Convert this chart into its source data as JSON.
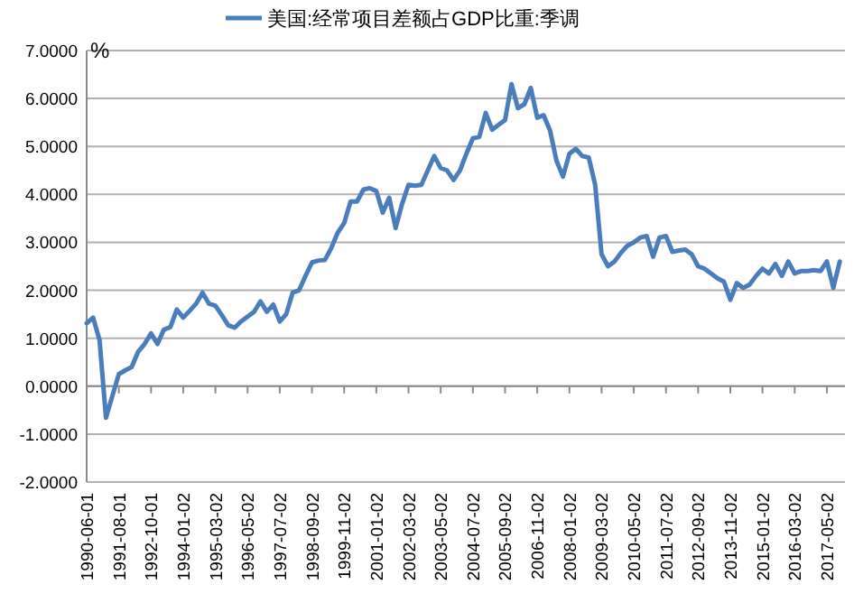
{
  "chart_data": {
    "type": "line",
    "ylabel": "%",
    "legend": "top",
    "grid": "y",
    "line_style": "solid",
    "marker": "none",
    "categories": [
      "1990-06-01",
      null,
      null,
      null,
      null,
      "1991-08-01",
      null,
      null,
      null,
      null,
      "1992-10-01",
      null,
      null,
      null,
      null,
      "1994-01-02",
      null,
      null,
      null,
      null,
      "1995-03-02",
      null,
      null,
      null,
      null,
      "1996-05-02",
      null,
      null,
      null,
      null,
      "1997-07-02",
      null,
      null,
      null,
      null,
      "1998-09-02",
      null,
      null,
      null,
      null,
      "1999-11-02",
      null,
      null,
      null,
      null,
      "2001-01-02",
      null,
      null,
      null,
      null,
      "2002-03-02",
      null,
      null,
      null,
      null,
      "2003-05-02",
      null,
      null,
      null,
      null,
      "2004-07-02",
      null,
      null,
      null,
      null,
      "2005-09-02",
      null,
      null,
      null,
      null,
      "2006-11-02",
      null,
      null,
      null,
      null,
      "2008-01-02",
      null,
      null,
      null,
      null,
      "2009-03-02",
      null,
      null,
      null,
      null,
      "2010-05-02",
      null,
      null,
      null,
      null,
      "2011-07-02",
      null,
      null,
      null,
      null,
      "2012-09-02",
      null,
      null,
      null,
      null,
      "2013-11-02",
      null,
      null,
      null,
      null,
      "2015-01-02",
      null,
      null,
      null,
      null,
      "2016-03-02",
      null,
      null,
      null,
      null,
      "2017-05-02",
      null,
      null
    ],
    "ylim": [
      -2,
      7
    ],
    "yticks": [
      {
        "value": -2,
        "label": "-2.0000"
      },
      {
        "value": -1,
        "label": "-1.0000"
      },
      {
        "value": 0,
        "label": "0.0000"
      },
      {
        "value": 1,
        "label": "1.0000"
      },
      {
        "value": 2,
        "label": "2.0000"
      },
      {
        "value": 3,
        "label": "3.0000"
      },
      {
        "value": 4,
        "label": "4.0000"
      },
      {
        "value": 5,
        "label": "5.0000"
      },
      {
        "value": 6,
        "label": "6.0000"
      },
      {
        "value": 7,
        "label": "7.0000"
      }
    ],
    "series": [
      {
        "name": "美国:经常项目差额占GDP比重:季调",
        "color": "#4a7ebb",
        "values": [
          1.31,
          1.43,
          0.96,
          -0.66,
          -0.2,
          0.25,
          0.33,
          0.4,
          0.72,
          0.88,
          1.1,
          0.88,
          1.18,
          1.23,
          1.6,
          1.43,
          1.57,
          1.72,
          1.95,
          1.72,
          1.68,
          1.48,
          1.27,
          1.22,
          1.35,
          1.45,
          1.55,
          1.77,
          1.55,
          1.7,
          1.35,
          1.5,
          1.95,
          2.0,
          2.3,
          2.58,
          2.62,
          2.63,
          2.88,
          3.2,
          3.4,
          3.85,
          3.85,
          4.1,
          4.13,
          4.07,
          3.62,
          3.93,
          3.3,
          3.8,
          4.2,
          4.18,
          4.2,
          4.5,
          4.8,
          4.55,
          4.5,
          4.3,
          4.5,
          4.85,
          5.17,
          5.2,
          5.7,
          5.35,
          5.45,
          5.55,
          6.3,
          5.8,
          5.88,
          6.22,
          5.6,
          5.65,
          5.33,
          4.7,
          4.37,
          4.85,
          4.95,
          4.8,
          4.77,
          4.2,
          2.75,
          2.5,
          2.6,
          2.78,
          2.93,
          3.0,
          3.1,
          3.13,
          2.7,
          3.1,
          3.13,
          2.8,
          2.83,
          2.85,
          2.75,
          2.5,
          2.45,
          2.35,
          2.25,
          2.18,
          1.8,
          2.15,
          2.05,
          2.12,
          2.3,
          2.45,
          2.35,
          2.55,
          2.3,
          2.6,
          2.35,
          2.4,
          2.4,
          2.42,
          2.4,
          2.6,
          2.05,
          2.6
        ]
      }
    ]
  }
}
